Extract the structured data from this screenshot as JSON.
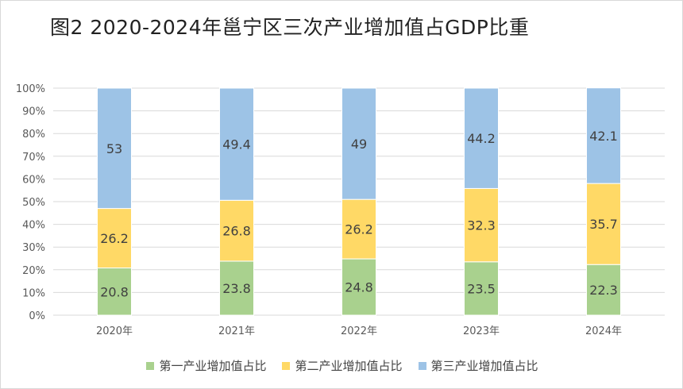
{
  "title": "图2   2020-2024年邕宁区三次产业增加值占GDP比重",
  "colors": {
    "primary": "#a9d18e",
    "secondary": "#ffd966",
    "tertiary": "#9dc3e6",
    "grid": "#d9d9d9",
    "axis_text": "#595959",
    "label_text": "#404040"
  },
  "chart_data": {
    "type": "bar",
    "stacked": true,
    "title": "图2   2020-2024年邕宁区三次产业增加值占GDP比重",
    "categories": [
      "2020年",
      "2021年",
      "2022年",
      "2023年",
      "2024年"
    ],
    "series": [
      {
        "name": "第一产业增加值占比",
        "values": [
          20.8,
          23.8,
          24.8,
          23.5,
          22.3
        ]
      },
      {
        "name": "第二产业增加值占比",
        "values": [
          26.2,
          26.8,
          26.2,
          32.3,
          35.7
        ]
      },
      {
        "name": "第三产业增加值占比",
        "values": [
          53,
          49.4,
          49,
          44.2,
          42.1
        ]
      }
    ],
    "y_ticks": [
      "0%",
      "10%",
      "20%",
      "30%",
      "40%",
      "50%",
      "60%",
      "70%",
      "80%",
      "90%",
      "100%"
    ],
    "ylim": [
      0,
      100
    ],
    "grid": true,
    "legend_position": "bottom"
  }
}
